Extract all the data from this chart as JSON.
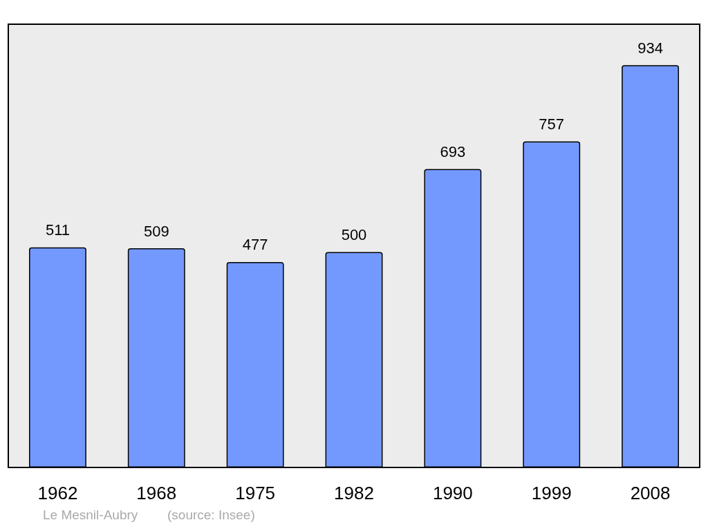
{
  "chart_data": {
    "type": "bar",
    "categories": [
      "1962",
      "1968",
      "1975",
      "1982",
      "1990",
      "1999",
      "2008"
    ],
    "values": [
      511,
      509,
      477,
      500,
      693,
      757,
      934
    ],
    "color": "#7399ff",
    "data_labels": true,
    "annotations": [
      "Le Mesnil-Aubry",
      "(source: Insee)"
    ]
  }
}
